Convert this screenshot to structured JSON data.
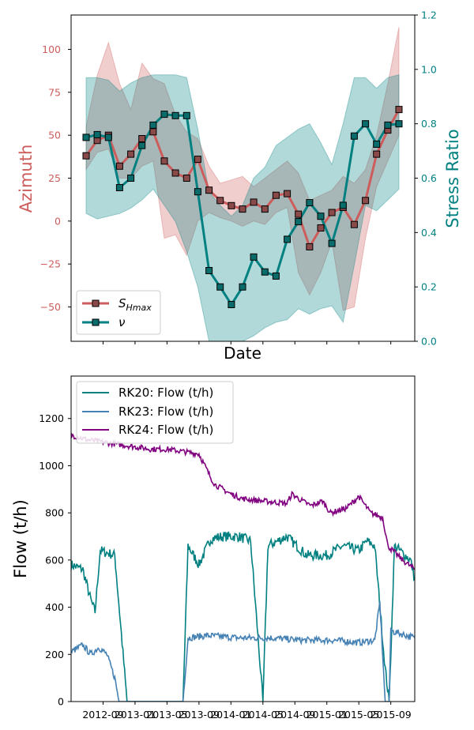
{
  "chart_data": [
    {
      "type": "line",
      "xlabel": "Date",
      "ylabel_left": "Azimuth",
      "ylabel_right": "Stress Ratio",
      "ylim_left": [
        -70,
        120
      ],
      "ylim_right": [
        0.0,
        1.2
      ],
      "yticks_left": [
        "100",
        "75",
        "50",
        "25",
        "0",
        "−25",
        "−50"
      ],
      "yticks_right": [
        "1.2",
        "1.0",
        "0.8",
        "0.6",
        "0.4",
        "0.2",
        "0.0"
      ],
      "legend_position": "lower-left",
      "colors": {
        "left_axis": "#cd5c5c",
        "right_axis": "#008080"
      },
      "series": [
        {
          "name": "S_Hmax",
          "legend_main": "S",
          "legend_sub": "Hmax",
          "axis": "left",
          "color": "#cd5c5c",
          "values": [
            38,
            47,
            50,
            32,
            39,
            48,
            52,
            35,
            28,
            25,
            36,
            18,
            12,
            9,
            7,
            11,
            7,
            15,
            16,
            4,
            -15,
            -4,
            5,
            8,
            -2,
            12,
            39,
            53,
            65
          ],
          "band_low": [
            30,
            40,
            42,
            25,
            25,
            32,
            35,
            -10,
            -8,
            -20,
            0,
            5,
            2,
            0,
            -3,
            0,
            -2,
            5,
            8,
            -30,
            -43,
            -30,
            -12,
            -52,
            -50,
            -10,
            20,
            35,
            50
          ],
          "band_high": [
            55,
            85,
            104,
            80,
            65,
            92,
            83,
            80,
            62,
            52,
            48,
            32,
            22,
            24,
            26,
            20,
            25,
            30,
            35,
            28,
            12,
            15,
            18,
            26,
            22,
            30,
            50,
            80,
            113
          ]
        },
        {
          "name": "ν",
          "axis": "right",
          "color": "#008080",
          "values": [
            0.75,
            0.76,
            0.75,
            0.565,
            0.6,
            0.72,
            0.795,
            0.835,
            0.83,
            0.83,
            0.55,
            0.26,
            0.2,
            0.135,
            0.2,
            0.31,
            0.255,
            0.24,
            0.375,
            0.44,
            0.51,
            0.46,
            0.36,
            0.5,
            0.755,
            0.8,
            0.725,
            0.795,
            0.8
          ],
          "band_low": [
            0.47,
            0.45,
            0.46,
            0.47,
            0.49,
            0.52,
            0.56,
            0.5,
            0.44,
            0.33,
            0.2,
            0.0,
            0.0,
            0.0,
            0.0,
            0.02,
            0.05,
            0.07,
            0.08,
            0.12,
            0.1,
            0.12,
            0.13,
            0.07,
            0.28,
            0.5,
            0.48,
            0.52,
            0.56
          ],
          "band_high": [
            0.97,
            0.97,
            0.96,
            0.92,
            0.95,
            0.97,
            0.98,
            0.98,
            0.98,
            0.97,
            0.78,
            0.55,
            0.5,
            0.46,
            0.5,
            0.6,
            0.64,
            0.72,
            0.75,
            0.78,
            0.8,
            0.73,
            0.65,
            0.8,
            0.97,
            0.97,
            0.93,
            0.97,
            0.98
          ]
        }
      ]
    },
    {
      "type": "line",
      "xlabel": "",
      "ylabel": "Flow (t/h)",
      "ylim": [
        0,
        1380
      ],
      "yticks": [
        "1200",
        "1000",
        "800",
        "600",
        "400",
        "200",
        "0"
      ],
      "xticks": [
        "2012-09",
        "2013-01",
        "2013-05",
        "2013-09",
        "2014-01",
        "2014-05",
        "2014-09",
        "2015-01",
        "2015-05",
        "2015-09"
      ],
      "xlim": [
        "2012-05",
        "2015-12"
      ],
      "legend_position": "upper-left",
      "series": [
        {
          "name": "RK20: Flow (t/h)",
          "color": "#008080",
          "points": [
            [
              "2012-05-01",
              580
            ],
            [
              "2012-06-15",
              560
            ],
            [
              "2012-07-15",
              430
            ],
            [
              "2012-08-01",
              380
            ],
            [
              "2012-08-20",
              640
            ],
            [
              "2012-10-15",
              620
            ],
            [
              "2012-12-01",
              0
            ],
            [
              "2013-01-01",
              0
            ],
            [
              "2013-05-01",
              0
            ],
            [
              "2013-07-01",
              0
            ],
            [
              "2013-07-20",
              660
            ],
            [
              "2013-09-01",
              580
            ],
            [
              "2013-10-15",
              690
            ],
            [
              "2013-12-01",
              700
            ],
            [
              "2014-02-01",
              700
            ],
            [
              "2014-03-15",
              680
            ],
            [
              "2014-05-01",
              0
            ],
            [
              "2014-05-20",
              660
            ],
            [
              "2014-08-01",
              700
            ],
            [
              "2014-10-15",
              620
            ],
            [
              "2015-01-01",
              620
            ],
            [
              "2015-03-01",
              660
            ],
            [
              "2015-05-01",
              640
            ],
            [
              "2015-06-01",
              680
            ],
            [
              "2015-07-01",
              660
            ],
            [
              "2015-08-10",
              140
            ],
            [
              "2015-08-25",
              0
            ],
            [
              "2015-09-15",
              660
            ],
            [
              "2015-11-15",
              600
            ],
            [
              "2015-12-01",
              520
            ]
          ]
        },
        {
          "name": "RK23: Flow (t/h)",
          "color": "#4682b4",
          "points": [
            [
              "2012-05-01",
              210
            ],
            [
              "2012-06-15",
              240
            ],
            [
              "2012-07-15",
              200
            ],
            [
              "2012-08-15",
              230
            ],
            [
              "2012-09-15",
              200
            ],
            [
              "2012-10-15",
              100
            ],
            [
              "2012-11-01",
              0
            ],
            [
              "2013-07-01",
              0
            ],
            [
              "2013-07-20",
              270
            ],
            [
              "2013-10-01",
              280
            ],
            [
              "2014-02-01",
              270
            ],
            [
              "2014-06-01",
              270
            ],
            [
              "2014-10-01",
              260
            ],
            [
              "2015-02-01",
              260
            ],
            [
              "2015-05-01",
              250
            ],
            [
              "2015-07-01",
              260
            ],
            [
              "2015-07-20",
              420
            ],
            [
              "2015-08-10",
              0
            ],
            [
              "2015-08-25",
              0
            ],
            [
              "2015-09-01",
              300
            ],
            [
              "2015-12-01",
              270
            ]
          ]
        },
        {
          "name": "RK24: Flow (t/h)",
          "color": "#800080",
          "points": [
            [
              "2012-05-01",
              1130
            ],
            [
              "2012-07-01",
              1110
            ],
            [
              "2012-09-01",
              1100
            ],
            [
              "2012-11-01",
              1090
            ],
            [
              "2013-01-01",
              1080
            ],
            [
              "2013-03-01",
              1070
            ],
            [
              "2013-05-01",
              1070
            ],
            [
              "2013-07-01",
              1060
            ],
            [
              "2013-09-01",
              1050
            ],
            [
              "2013-10-15",
              950
            ],
            [
              "2013-11-01",
              920
            ],
            [
              "2014-01-01",
              880
            ],
            [
              "2014-02-15",
              860
            ],
            [
              "2014-05-01",
              850
            ],
            [
              "2014-08-01",
              840
            ],
            [
              "2014-08-20",
              880
            ],
            [
              "2014-09-15",
              860
            ],
            [
              "2014-11-01",
              830
            ],
            [
              "2014-12-15",
              850
            ],
            [
              "2015-01-15",
              800
            ],
            [
              "2015-03-15",
              820
            ],
            [
              "2015-05-01",
              870
            ],
            [
              "2015-06-15",
              800
            ],
            [
              "2015-08-01",
              780
            ],
            [
              "2015-08-20",
              660
            ],
            [
              "2015-10-15",
              600
            ],
            [
              "2015-12-01",
              560
            ]
          ]
        }
      ]
    }
  ]
}
